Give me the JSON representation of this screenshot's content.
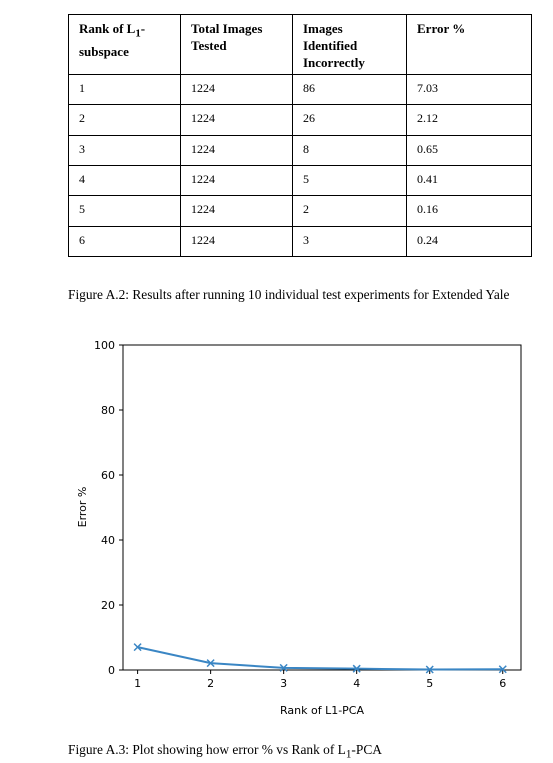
{
  "table": {
    "headers": [
      "Rank of L1-subspace",
      "Total Images Tested",
      "Images Identified Incorrectly",
      "Error %"
    ],
    "header_rank_prefix": "Rank of L",
    "header_rank_sub": "1",
    "header_rank_suffix": "-subspace",
    "rows": [
      [
        "1",
        "1224",
        "86",
        "7.03"
      ],
      [
        "2",
        "1224",
        "26",
        "2.12"
      ],
      [
        "3",
        "1224",
        "8",
        "0.65"
      ],
      [
        "4",
        "1224",
        "5",
        "0.41"
      ],
      [
        "5",
        "1224",
        "2",
        "0.16"
      ],
      [
        "6",
        "1224",
        "3",
        "0.24"
      ]
    ]
  },
  "figure_a2_caption": "Figure A.2: Results after running 10 individual test experiments for Extended Yale",
  "figure_a3_caption_prefix": "Figure A.3: Plot showing how error % vs Rank of L",
  "figure_a3_caption_sub": "1",
  "figure_a3_caption_suffix": "-PCA",
  "chart_data": {
    "type": "line",
    "xlabel": "Rank of L1-PCA",
    "ylabel": "Error %",
    "x": [
      1,
      2,
      3,
      4,
      5,
      6
    ],
    "y": [
      7.03,
      2.12,
      0.65,
      0.41,
      0.16,
      0.24
    ],
    "xticks": [
      "1",
      "2",
      "3",
      "4",
      "5",
      "6"
    ],
    "yticks": [
      "0",
      "20",
      "40",
      "60",
      "80",
      "100"
    ],
    "ylim": [
      0,
      100
    ],
    "xlim": [
      0.8,
      6.25
    ],
    "marker": "x",
    "line_color": "#3a86c4",
    "grid": false
  }
}
